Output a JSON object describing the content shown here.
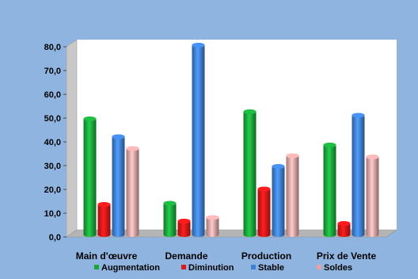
{
  "chart_data": {
    "type": "bar",
    "categories": [
      "Main d'œuvre",
      "Demande",
      "Production",
      "Prix de Vente"
    ],
    "series": [
      {
        "name": "Augmentation",
        "values": [
          48.0,
          12.5,
          51.0,
          37.0
        ],
        "color": "#1aa63a"
      },
      {
        "name": "Diminution",
        "values": [
          12.0,
          5.0,
          18.5,
          4.0
        ],
        "color": "#e01818"
      },
      {
        "name": "Stable",
        "values": [
          40.5,
          79.0,
          28.0,
          49.5
        ],
        "color": "#3f7fd6"
      },
      {
        "name": "Soldes",
        "values": [
          35.5,
          6.5,
          32.5,
          32.0
        ],
        "color": "#e7a3a3"
      }
    ],
    "yticks": [
      "0,0",
      "10,0",
      "20,0",
      "30,0",
      "40,0",
      "50,0",
      "60,0",
      "70,0",
      "80,0"
    ],
    "ylim": [
      0,
      80
    ],
    "grid": false,
    "legend_position": "bottom",
    "plot_background": "#ffffff",
    "floor_color": "#b5b5b5",
    "page_background": "#8fb4e0"
  }
}
